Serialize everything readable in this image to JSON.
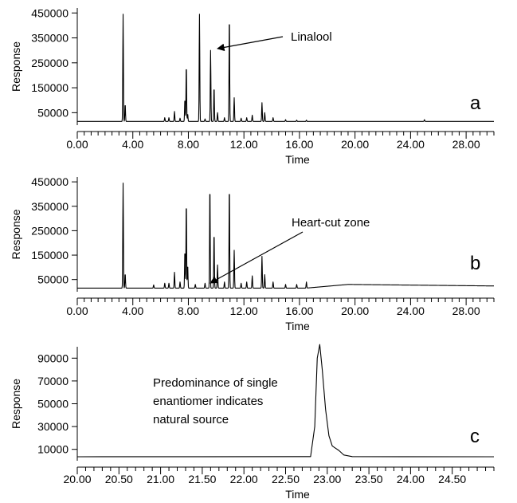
{
  "chart_data": [
    {
      "type": "line",
      "panel_label": "a",
      "xlabel": "Time",
      "ylabel": "Response",
      "xlim": [
        0,
        30
      ],
      "ylim": [
        0,
        470000
      ],
      "x_ticks": [
        "0.00",
        "4.00",
        "8.00",
        "12.00",
        "16.00",
        "20.00",
        "24.00",
        "28.00"
      ],
      "y_ticks": [
        "450000",
        "350000",
        "250000",
        "150000",
        "50000"
      ],
      "annotations": [
        {
          "text": "Linalool",
          "x": 8.8,
          "y": 420000
        }
      ],
      "baseline": 15000,
      "peaks": [
        {
          "x": 3.3,
          "y": 445000
        },
        {
          "x": 3.45,
          "y": 85000
        },
        {
          "x": 6.3,
          "y": 30000
        },
        {
          "x": 6.6,
          "y": 30000
        },
        {
          "x": 7.0,
          "y": 55000
        },
        {
          "x": 7.4,
          "y": 28000
        },
        {
          "x": 7.75,
          "y": 105000
        },
        {
          "x": 7.85,
          "y": 245000
        },
        {
          "x": 7.95,
          "y": 45000
        },
        {
          "x": 8.8,
          "y": 445000
        },
        {
          "x": 9.2,
          "y": 25000
        },
        {
          "x": 9.6,
          "y": 300000
        },
        {
          "x": 9.85,
          "y": 155000
        },
        {
          "x": 10.1,
          "y": 50000
        },
        {
          "x": 10.6,
          "y": 30000
        },
        {
          "x": 10.95,
          "y": 445000
        },
        {
          "x": 11.3,
          "y": 110000
        },
        {
          "x": 11.8,
          "y": 28000
        },
        {
          "x": 12.2,
          "y": 30000
        },
        {
          "x": 12.6,
          "y": 40000
        },
        {
          "x": 13.3,
          "y": 90000
        },
        {
          "x": 13.5,
          "y": 50000
        },
        {
          "x": 14.1,
          "y": 30000
        },
        {
          "x": 15.0,
          "y": 22000
        },
        {
          "x": 15.8,
          "y": 20000
        },
        {
          "x": 16.5,
          "y": 20000
        },
        {
          "x": 25.0,
          "y": 22000
        }
      ]
    },
    {
      "type": "line",
      "panel_label": "b",
      "xlabel": "Time",
      "ylabel": "Response",
      "xlim": [
        0,
        30
      ],
      "ylim": [
        0,
        470000
      ],
      "x_ticks": [
        "0.00",
        "4.00",
        "8.00",
        "12.00",
        "16.00",
        "20.00",
        "24.00",
        "28.00"
      ],
      "y_ticks": [
        "450000",
        "350000",
        "250000",
        "150000",
        "50000"
      ],
      "annotations": [
        {
          "text": "Heart-cut zone",
          "x": 8.9,
          "y": 40000
        }
      ],
      "baseline": 15000,
      "baseline_hump": {
        "from": 16.5,
        "peak_at": 19.5,
        "level": 30000
      },
      "peaks": [
        {
          "x": 3.3,
          "y": 445000
        },
        {
          "x": 3.45,
          "y": 75000
        },
        {
          "x": 5.5,
          "y": 28000
        },
        {
          "x": 6.3,
          "y": 35000
        },
        {
          "x": 6.6,
          "y": 35000
        },
        {
          "x": 7.0,
          "y": 80000
        },
        {
          "x": 7.4,
          "y": 40000
        },
        {
          "x": 7.75,
          "y": 170000
        },
        {
          "x": 7.85,
          "y": 375000
        },
        {
          "x": 7.95,
          "y": 110000
        },
        {
          "x": 8.5,
          "y": 30000
        },
        {
          "x": 9.2,
          "y": 35000
        },
        {
          "x": 9.55,
          "y": 440000
        },
        {
          "x": 9.85,
          "y": 245000
        },
        {
          "x": 10.1,
          "y": 110000
        },
        {
          "x": 10.6,
          "y": 40000
        },
        {
          "x": 10.95,
          "y": 440000
        },
        {
          "x": 11.3,
          "y": 170000
        },
        {
          "x": 11.8,
          "y": 35000
        },
        {
          "x": 12.2,
          "y": 40000
        },
        {
          "x": 12.6,
          "y": 65000
        },
        {
          "x": 13.3,
          "y": 145000
        },
        {
          "x": 13.5,
          "y": 70000
        },
        {
          "x": 14.1,
          "y": 40000
        },
        {
          "x": 15.0,
          "y": 30000
        },
        {
          "x": 15.8,
          "y": 30000
        },
        {
          "x": 16.5,
          "y": 40000
        }
      ]
    },
    {
      "type": "line",
      "panel_label": "c",
      "xlabel": "Time",
      "ylabel": "Response",
      "xlim": [
        20.0,
        25.0
      ],
      "ylim": [
        0,
        100000
      ],
      "x_ticks": [
        "20.00",
        "20.50",
        "21.00",
        "21.50",
        "22.00",
        "22.50",
        "23.00",
        "23.50",
        "24.00",
        "24.50"
      ],
      "y_ticks": [
        "90000",
        "70000",
        "50000",
        "30000",
        "10000"
      ],
      "annotations": [
        {
          "line1": "Predominance of single",
          "line2": "enantiomer indicates",
          "line3": "natural source"
        }
      ],
      "baseline": 3500,
      "series": [
        {
          "x": [
            20.0,
            22.8,
            22.85,
            22.88,
            22.91,
            22.94,
            22.98,
            23.02,
            23.06,
            23.1,
            23.14,
            23.2,
            23.3,
            25.0
          ],
          "y": [
            3500,
            3600,
            30000,
            90000,
            102000,
            80000,
            45000,
            22000,
            13000,
            11000,
            9000,
            5000,
            3600,
            3500
          ]
        }
      ]
    }
  ]
}
